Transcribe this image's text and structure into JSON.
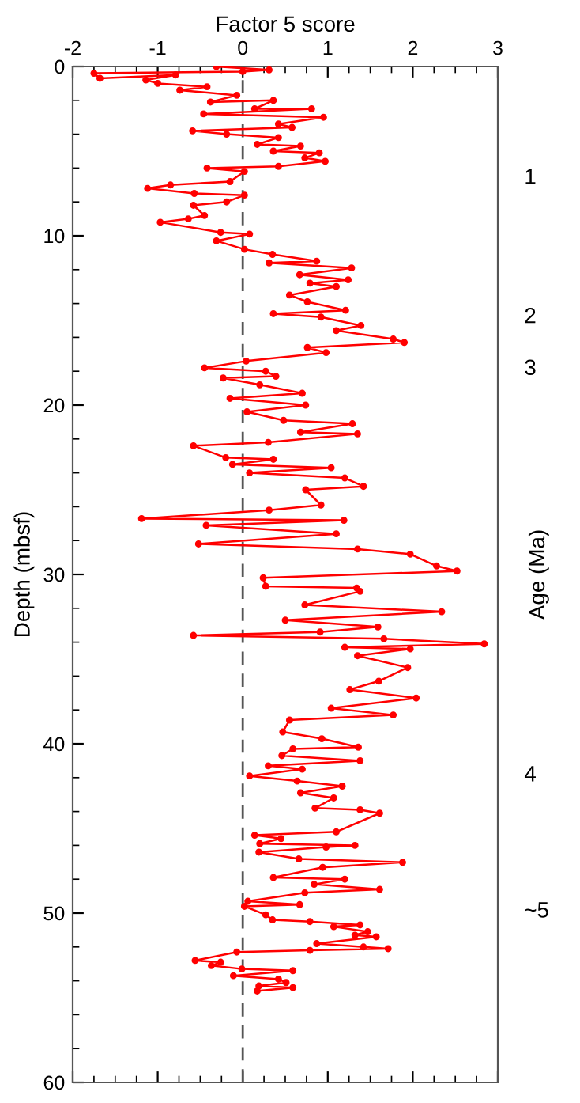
{
  "chart_data": {
    "type": "line",
    "xlabel": "Factor 5 score",
    "ylabel": "Depth (mbsf)",
    "y2label": "Age (Ma)",
    "xlim": [
      -2,
      3
    ],
    "ylim": [
      60,
      0
    ],
    "xticks": [
      -2,
      {
        "value": -1.75,
        "label": null
      },
      {
        "value": -1.5,
        "label": null
      },
      {
        "value": -1.25,
        "label": null
      },
      -1,
      {
        "value": -0.75,
        "label": null
      },
      {
        "value": -0.5,
        "label": null
      },
      {
        "value": -0.25,
        "label": null
      },
      0,
      {
        "value": 0.25,
        "label": null
      },
      {
        "value": 0.5,
        "label": null
      },
      {
        "value": 0.75,
        "label": null
      },
      1,
      {
        "value": 1.25,
        "label": null
      },
      {
        "value": 1.5,
        "label": null
      },
      {
        "value": 1.75,
        "label": null
      },
      2,
      {
        "value": 2.25,
        "label": null
      },
      {
        "value": 2.5,
        "label": null
      },
      {
        "value": 2.75,
        "label": null
      },
      3
    ],
    "yticks": [
      0,
      {
        "value": 2,
        "label": null
      },
      {
        "value": 4,
        "label": null
      },
      {
        "value": 6,
        "label": null
      },
      {
        "value": 8,
        "label": null
      },
      10,
      {
        "value": 12,
        "label": null
      },
      {
        "value": 14,
        "label": null
      },
      {
        "value": 16,
        "label": null
      },
      {
        "value": 18,
        "label": null
      },
      20,
      {
        "value": 22,
        "label": null
      },
      {
        "value": 24,
        "label": null
      },
      {
        "value": 26,
        "label": null
      },
      {
        "value": 28,
        "label": null
      },
      30,
      {
        "value": 32,
        "label": null
      },
      {
        "value": 34,
        "label": null
      },
      {
        "value": 36,
        "label": null
      },
      {
        "value": 38,
        "label": null
      },
      40,
      {
        "value": 42,
        "label": null
      },
      {
        "value": 44,
        "label": null
      },
      {
        "value": 46,
        "label": null
      },
      {
        "value": 48,
        "label": null
      },
      50,
      {
        "value": 52,
        "label": null
      },
      {
        "value": 54,
        "label": null
      },
      {
        "value": 56,
        "label": null
      },
      {
        "value": 58,
        "label": null
      },
      60
    ],
    "annotations": [
      "1",
      "2",
      "3",
      "4",
      "~5"
    ],
    "grid": false,
    "marker": "circle",
    "line_style": "solid",
    "ref_lines": [
      {
        "axis": "x",
        "value": 0,
        "label": null,
        "color": "#555555",
        "line_style": "dashed"
      }
    ],
    "series": [
      {
        "color": "#ff0000",
        "x": [
          -0.31,
          0.31,
          0.0,
          -1.75,
          -1.68,
          -0.79,
          -1.14,
          -1.0,
          -0.42,
          -0.74,
          -0.07,
          -0.38,
          0.36,
          0.14,
          0.81,
          -0.46,
          0.95,
          0.42,
          0.58,
          -0.59,
          -0.19,
          0.42,
          0.17,
          0.68,
          0.36,
          0.9,
          0.73,
          0.97,
          0.42,
          -0.42,
          0.02,
          -0.15,
          -0.85,
          -1.12,
          -0.57,
          0.02,
          -0.19,
          -0.58,
          -0.45,
          -0.64,
          -0.97,
          -0.26,
          0.08,
          -0.31,
          0.02,
          0.35,
          0.87,
          0.31,
          1.28,
          0.67,
          1.24,
          0.79,
          1.1,
          0.55,
          0.76,
          1.21,
          0.36,
          0.92,
          1.39,
          1.1,
          1.77,
          1.9,
          0.76,
          0.98,
          0.04,
          -0.45,
          0.27,
          0.39,
          -0.23,
          0.2,
          0.7,
          -0.15,
          0.74,
          0.05,
          0.48,
          1.29,
          0.68,
          1.35,
          0.3,
          -0.58,
          -0.2,
          0.36,
          -0.12,
          1.04,
          0.08,
          1.2,
          1.42,
          0.74,
          0.92,
          0.31,
          -1.19,
          1.19,
          -0.43,
          1.1,
          -0.52,
          1.35,
          1.97,
          2.28,
          2.52,
          0.24,
          0.27,
          1.34,
          1.38,
          0.73,
          2.34,
          0.5,
          1.59,
          0.91,
          -0.58,
          1.66,
          2.84,
          1.2,
          1.97,
          1.35,
          1.94,
          1.6,
          1.26,
          2.04,
          1.04,
          1.77,
          0.55,
          0.47,
          0.93,
          1.36,
          0.59,
          0.46,
          1.38,
          0.3,
          0.7,
          0.08,
          0.64,
          1.17,
          0.68,
          1.07,
          0.85,
          1.38,
          1.61,
          1.1,
          0.14,
          0.45,
          0.2,
          1.32,
          0.98,
          0.19,
          0.66,
          1.88,
          0.94,
          0.36,
          1.2,
          0.84,
          1.61,
          0.73,
          0.06,
          0.67,
          0.02,
          0.27,
          0.35,
          0.79,
          1.38,
          1.07,
          1.47,
          1.32,
          1.57,
          0.87,
          1.42,
          1.71,
          0.79,
          -0.07,
          -0.56,
          -0.26,
          -0.37,
          -0.01,
          0.59,
          -0.11,
          0.42,
          0.51,
          0.19,
          0.59,
          0.17
        ],
        "values": [
          0.0,
          0.2,
          0.3,
          0.4,
          0.7,
          0.5,
          0.8,
          1.0,
          1.2,
          1.4,
          1.7,
          2.1,
          2.0,
          2.5,
          2.5,
          2.8,
          3.0,
          3.4,
          3.6,
          3.8,
          4.0,
          4.2,
          4.6,
          4.7,
          5.0,
          5.1,
          5.4,
          5.6,
          5.9,
          6.0,
          6.2,
          6.8,
          7.0,
          7.2,
          7.5,
          7.6,
          8.0,
          8.2,
          8.8,
          9.0,
          9.2,
          9.8,
          9.9,
          10.3,
          10.8,
          11.1,
          11.5,
          11.6,
          11.9,
          12.3,
          12.6,
          12.8,
          13.0,
          13.5,
          13.9,
          14.4,
          14.6,
          14.8,
          15.3,
          15.6,
          16.1,
          16.3,
          16.6,
          16.9,
          17.4,
          17.8,
          18.0,
          18.3,
          18.4,
          18.8,
          19.3,
          19.6,
          20.0,
          20.4,
          20.9,
          21.1,
          21.6,
          21.7,
          22.2,
          22.4,
          23.1,
          23.2,
          23.5,
          23.7,
          24.0,
          24.3,
          24.8,
          25.0,
          25.9,
          26.2,
          26.7,
          26.8,
          27.1,
          27.6,
          28.2,
          28.5,
          28.8,
          29.5,
          29.8,
          30.2,
          30.7,
          30.8,
          31.0,
          31.8,
          32.2,
          32.7,
          33.1,
          33.4,
          33.6,
          33.8,
          34.1,
          34.3,
          34.4,
          34.8,
          35.5,
          36.3,
          36.8,
          37.3,
          37.9,
          38.3,
          38.6,
          39.3,
          39.7,
          40.2,
          40.3,
          40.7,
          41.0,
          41.3,
          41.5,
          41.9,
          42.2,
          42.5,
          42.9,
          43.2,
          43.8,
          43.9,
          44.1,
          45.2,
          45.4,
          45.6,
          45.9,
          46.0,
          46.1,
          46.4,
          46.8,
          47.0,
          47.3,
          47.9,
          48.0,
          48.3,
          48.6,
          48.8,
          49.3,
          49.5,
          49.6,
          50.1,
          50.4,
          50.5,
          50.7,
          50.8,
          51.1,
          51.3,
          51.4,
          51.8,
          52.0,
          52.1,
          52.2,
          52.3,
          52.8,
          52.9,
          53.1,
          53.3,
          53.4,
          53.7,
          53.9,
          54.1,
          54.3,
          54.4,
          54.6
        ]
      }
    ]
  }
}
